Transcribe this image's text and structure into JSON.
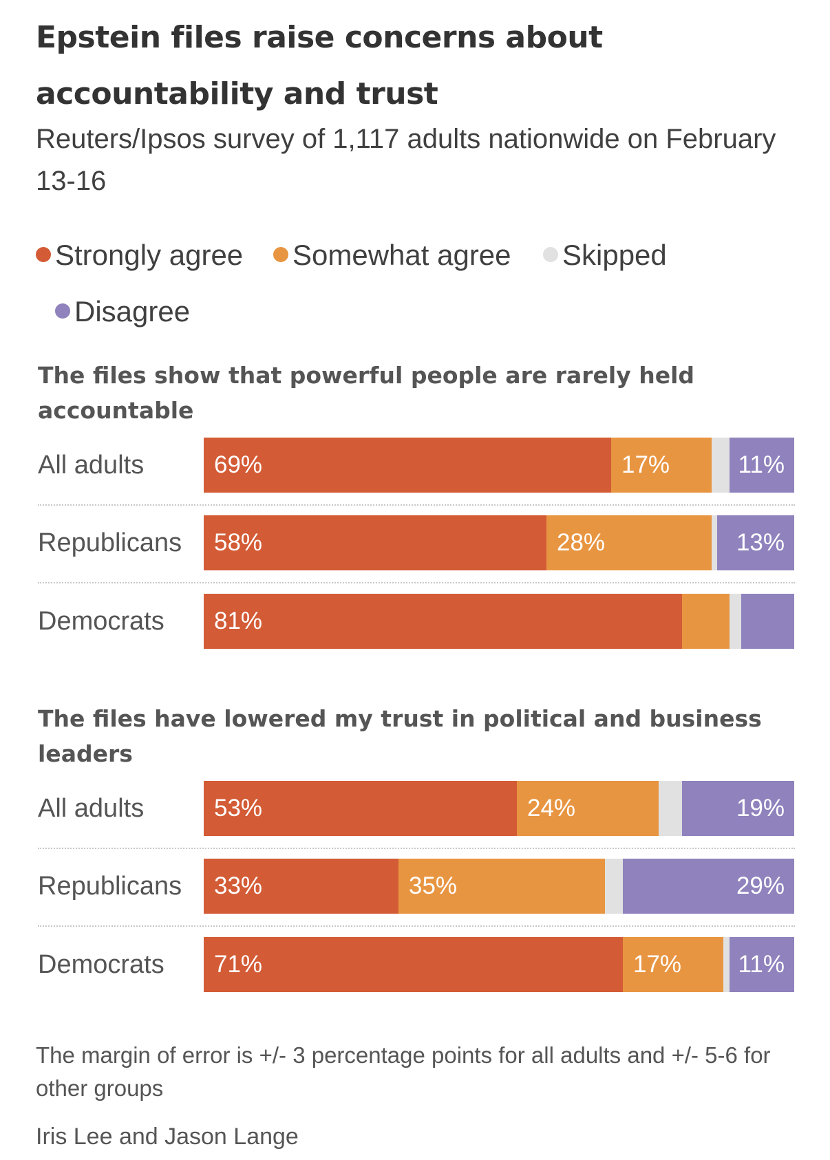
{
  "title": "Epstein files raise concerns about accountability and trust",
  "subtitle": "Reuters/Ipsos survey of 1,117 adults nationwide on February 13-16",
  "legend": [
    {
      "label": "Strongly agree",
      "color": "#d35b35"
    },
    {
      "label": "Somewhat agree",
      "color": "#e89541"
    },
    {
      "label": "Skipped",
      "color": "#e1e1e1"
    },
    {
      "label": "Disagree",
      "color": "#8f82bd"
    }
  ],
  "chart_data": [
    {
      "type": "bar",
      "orientation": "horizontal",
      "stacked": true,
      "title": "The files show that powerful people are rarely held accountable",
      "categories": [
        "All adults",
        "Republicans",
        "Democrats"
      ],
      "series": [
        {
          "name": "Strongly agree",
          "values": [
            69,
            58,
            81
          ],
          "labels": [
            "69%",
            "58%",
            "81%"
          ]
        },
        {
          "name": "Somewhat agree",
          "values": [
            17,
            28,
            8
          ],
          "labels": [
            "17%",
            "28%",
            ""
          ]
        },
        {
          "name": "Skipped",
          "values": [
            3,
            1,
            2
          ],
          "labels": [
            "",
            "",
            ""
          ]
        },
        {
          "name": "Disagree",
          "values": [
            11,
            13,
            9
          ],
          "labels": [
            "11%",
            "13%",
            ""
          ]
        }
      ],
      "xlim": [
        0,
        100
      ]
    },
    {
      "type": "bar",
      "orientation": "horizontal",
      "stacked": true,
      "title": "The files have lowered my trust in political and business leaders",
      "categories": [
        "All adults",
        "Republicans",
        "Democrats"
      ],
      "series": [
        {
          "name": "Strongly agree",
          "values": [
            53,
            33,
            71
          ],
          "labels": [
            "53%",
            "33%",
            "71%"
          ]
        },
        {
          "name": "Somewhat agree",
          "values": [
            24,
            35,
            17
          ],
          "labels": [
            "24%",
            "35%",
            "17%"
          ]
        },
        {
          "name": "Skipped",
          "values": [
            4,
            3,
            1
          ],
          "labels": [
            "",
            "",
            ""
          ]
        },
        {
          "name": "Disagree",
          "values": [
            19,
            29,
            11
          ],
          "labels": [
            "19%",
            "29%",
            "11%"
          ]
        }
      ],
      "xlim": [
        0,
        100
      ]
    }
  ],
  "footnote": "The margin of error is +/- 3 percentage points for all adults and +/- 5-6 for other groups",
  "credit": "Iris Lee and Jason Lange"
}
